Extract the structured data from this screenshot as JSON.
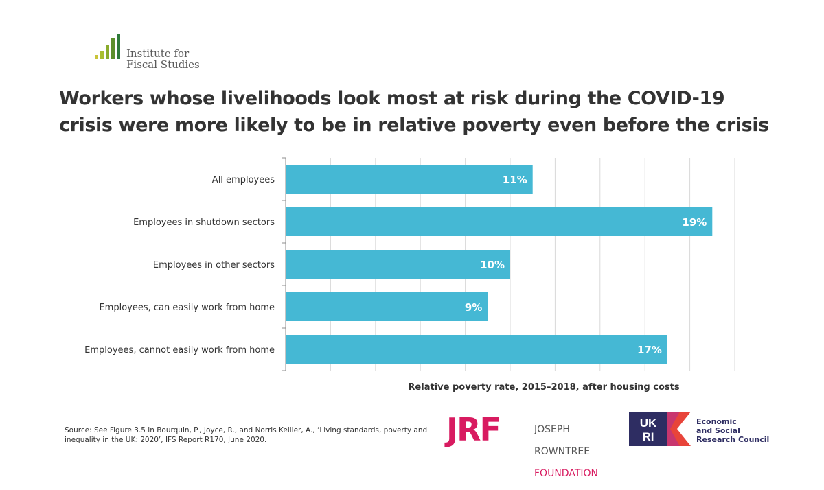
{
  "header": {
    "ifs_logo_text": "Institute for\nFiscal Studies",
    "title": "Workers whose livelihoods look most at risk during the COVID-19 crisis were more likely to be in relative poverty even before the crisis"
  },
  "chart_data": {
    "type": "bar",
    "orientation": "horizontal",
    "categories": [
      "All employees",
      "Employees in shutdown sectors",
      "Employees in other sectors",
      "Employees, can easily work from home",
      "Employees, cannot easily work from home"
    ],
    "values": [
      11,
      19,
      10,
      9,
      17
    ],
    "data_labels": [
      "11%",
      "19%",
      "10%",
      "9%",
      "17%"
    ],
    "xlabel": "Relative poverty rate, 2015–2018, after housing costs",
    "ylabel": "",
    "xlim": [
      0,
      20
    ],
    "grid": true,
    "bar_color": "#45b8d4"
  },
  "footer": {
    "source": "Source: See Figure 3.5 in Bourquin, P., Joyce, R., and  Norris Keiller, A., ‘Living standards, poverty and inequality in the UK: 2020’, IFS Report R170, June 2020.",
    "jrf_mark": "JRF",
    "jrf_line1": "JOSEPH",
    "jrf_line2": "ROWNTREE",
    "jrf_line3": "FOUNDATION",
    "ukri_mark": "UKRI",
    "ukri_text": "Economic\nand Social\nResearch Council"
  },
  "colors": {
    "ifs_green": "#8aab2c",
    "jrf_pink": "#d81b60",
    "ukri_navy": "#2e2d62",
    "ukri_red": "#e8443a"
  }
}
